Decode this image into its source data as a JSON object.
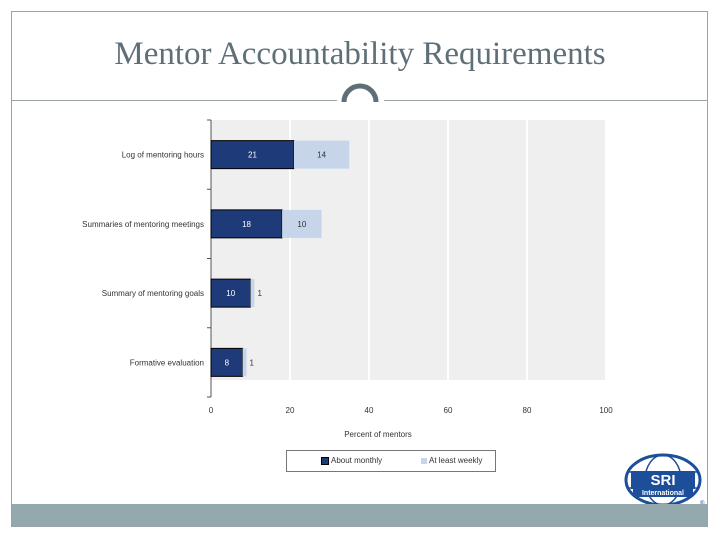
{
  "slide": {
    "title": "Mentor Accountability Requirements"
  },
  "colors": {
    "monthly": "#1f3a78",
    "weekly": "#c6d5e9",
    "plot_bg": "#efefef",
    "accent": "#93a9ad"
  },
  "logo": {
    "text_top": "SRI",
    "text_bottom": "International"
  },
  "chart_data": {
    "type": "bar",
    "orientation": "horizontal",
    "stacked": true,
    "categories": [
      "Log of mentoring hours",
      "Summaries of mentoring meetings",
      "Summary of mentoring goals",
      "Formative evaluation"
    ],
    "series": [
      {
        "name": "About monthly",
        "values": [
          21,
          18,
          10,
          8
        ],
        "color": "#1f3a78"
      },
      {
        "name": "At least weekly",
        "values": [
          14,
          10,
          1,
          1
        ],
        "color": "#c6d5e9"
      }
    ],
    "xlabel": "Percent of mentors",
    "xlim": [
      0,
      100
    ],
    "xticks": [
      0,
      20,
      40,
      60,
      80,
      100
    ],
    "grid": "vertical",
    "legend": "bottom"
  }
}
